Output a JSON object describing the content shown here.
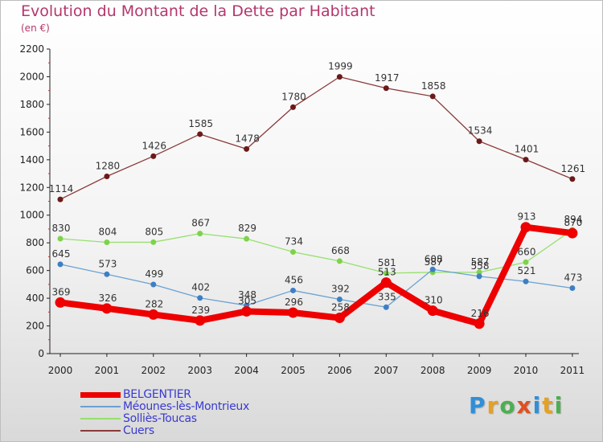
{
  "title": "Evolution du Montant de la Dette par Habitant",
  "subtitle": "(en €)",
  "logo": "Proxiti",
  "chart_data": {
    "type": "line",
    "title": "Evolution du Montant de la Dette par Habitant",
    "ylabel": "(en €)",
    "xlabel": "",
    "categories": [
      "2000",
      "2001",
      "2002",
      "2003",
      "2004",
      "2005",
      "2006",
      "2007",
      "2008",
      "2009",
      "2010",
      "2011"
    ],
    "ylim": [
      0,
      2200
    ],
    "yticks": [
      "0",
      "200",
      "400",
      "600",
      "800",
      "1000",
      "1200",
      "1400",
      "1600",
      "1800",
      "2000",
      "2200"
    ],
    "grid": false,
    "legend_position": "bottom-left",
    "series": [
      {
        "name": "BELGENTIER",
        "color": "#ee0000",
        "values": [
          369,
          326,
          282,
          239,
          305,
          296,
          258,
          513,
          310,
          216,
          913,
          870
        ],
        "labels": [
          "369",
          "326",
          "282",
          "239",
          "305",
          "296",
          "258",
          "513",
          "310",
          "216",
          "913",
          "870"
        ]
      },
      {
        "name": "Méounes-lès-Montrieux",
        "color": "#6aa1d2",
        "values": [
          645,
          573,
          499,
          402,
          348,
          456,
          392,
          335,
          608,
          558,
          521,
          473
        ],
        "labels": [
          "645",
          "573",
          "499",
          "402",
          "348",
          "456",
          "392",
          "335",
          "608",
          "558",
          "521",
          "473"
        ]
      },
      {
        "name": "Solliès-Toucas",
        "color": "#96e06e",
        "values": [
          830,
          804,
          805,
          867,
          829,
          734,
          668,
          581,
          587,
          587,
          660,
          894
        ],
        "labels": [
          "830",
          "804",
          "805",
          "867",
          "829",
          "734",
          "668",
          "581",
          "587",
          "587",
          "660",
          "894"
        ]
      },
      {
        "name": "Cuers",
        "color": "#8b3a3a",
        "values": [
          1114,
          1280,
          1426,
          1585,
          1478,
          1780,
          1999,
          1917,
          1858,
          1534,
          1401,
          1261
        ],
        "labels": [
          "1114",
          "1280",
          "1426",
          "1585",
          "1478",
          "1780",
          "1999",
          "1917",
          "1858",
          "1534",
          "1401",
          "1261"
        ]
      }
    ]
  }
}
